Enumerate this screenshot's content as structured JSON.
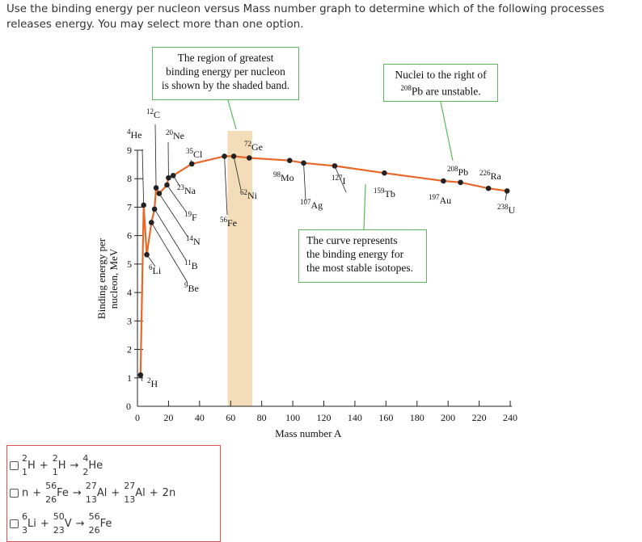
{
  "question": "Use the binding energy per nucleon versus Mass number graph to determine which of the following processes releases energy. You may select more than one option.",
  "callouts": {
    "shaded_band": [
      "The region of greatest",
      "binding energy per nucleon",
      "is shown by the shaded band."
    ],
    "unstable": [
      "Nuclei to the right of",
      "Pb are unstable."
    ],
    "unstable_mass": "208",
    "curve": [
      "The curve represents",
      "the binding energy for",
      "the most stable isotopes."
    ]
  },
  "colors": {
    "curve": "#e8682a",
    "band": "#f3ddb9",
    "callout_border": "#5cb85c",
    "options_border": "#d9534f"
  },
  "chart_data": {
    "type": "line",
    "xlabel": "Mass number A",
    "ylabel": [
      "Binding energy per",
      "nucleon, MeV"
    ],
    "xlim": [
      0,
      240
    ],
    "ylim": [
      0,
      9
    ],
    "xticks": [
      0,
      20,
      40,
      60,
      80,
      100,
      120,
      140,
      160,
      180,
      200,
      220,
      240
    ],
    "yticks": [
      1,
      2,
      3,
      4,
      5,
      6,
      7,
      8,
      9
    ],
    "shaded_band": [
      58,
      74
    ],
    "series": [
      {
        "points": [
          {
            "A": 2,
            "y": 1.1,
            "mass": "2",
            "sym": "H"
          },
          {
            "A": 4,
            "y": 7.07,
            "mass": "4",
            "sym": "He"
          },
          {
            "A": 6,
            "y": 5.33,
            "mass": "6",
            "sym": "Li"
          },
          {
            "A": 9,
            "y": 6.46,
            "mass": "9",
            "sym": "Be"
          },
          {
            "A": 11,
            "y": 6.93,
            "mass": "11",
            "sym": "B"
          },
          {
            "A": 12,
            "y": 7.68,
            "mass": "12",
            "sym": "C"
          },
          {
            "A": 14,
            "y": 7.48,
            "mass": "14",
            "sym": "N"
          },
          {
            "A": 19,
            "y": 7.78,
            "mass": "19",
            "sym": "F"
          },
          {
            "A": 20,
            "y": 8.03,
            "mass": "20",
            "sym": "Ne"
          },
          {
            "A": 23,
            "y": 8.11,
            "mass": "23",
            "sym": "Na"
          },
          {
            "A": 35,
            "y": 8.52,
            "mass": "35",
            "sym": "Cl"
          },
          {
            "A": 56,
            "y": 8.79,
            "mass": "56",
            "sym": "Fe"
          },
          {
            "A": 62,
            "y": 8.79,
            "mass": "62",
            "sym": "Ni"
          },
          {
            "A": 72,
            "y": 8.73,
            "mass": "72",
            "sym": "Ge"
          },
          {
            "A": 98,
            "y": 8.64,
            "mass": "98",
            "sym": "Mo"
          },
          {
            "A": 107,
            "y": 8.55,
            "mass": "107",
            "sym": "Ag"
          },
          {
            "A": 127,
            "y": 8.45,
            "mass": "127",
            "sym": "I"
          },
          {
            "A": 159,
            "y": 8.2,
            "mass": "159",
            "sym": "Tb"
          },
          {
            "A": 197,
            "y": 7.92,
            "mass": "197",
            "sym": "Au"
          },
          {
            "A": 208,
            "y": 7.87,
            "mass": "208",
            "sym": "Pb"
          },
          {
            "A": 226,
            "y": 7.66,
            "mass": "226",
            "sym": "Ra"
          },
          {
            "A": 238,
            "y": 7.57,
            "mass": "238",
            "sym": "U"
          }
        ]
      }
    ]
  },
  "options": [
    {
      "parts": [
        {
          "kind": "nuc",
          "sup": "2",
          "sub": "1",
          "sym": "H"
        },
        {
          "kind": "op",
          "text": "+"
        },
        {
          "kind": "nuc",
          "sup": "2",
          "sub": "1",
          "sym": "H"
        },
        {
          "kind": "op",
          "text": "→"
        },
        {
          "kind": "nuc",
          "sup": "4",
          "sub": "2",
          "sym": "He"
        }
      ]
    },
    {
      "parts": [
        {
          "kind": "nuc",
          "sup": "",
          "sub": "",
          "sym": "n"
        },
        {
          "kind": "op",
          "text": "+"
        },
        {
          "kind": "nuc",
          "sup": "56",
          "sub": "26",
          "sym": "Fe"
        },
        {
          "kind": "op",
          "text": "→"
        },
        {
          "kind": "nuc",
          "sup": "27",
          "sub": "13",
          "sym": "Al"
        },
        {
          "kind": "op",
          "text": "+"
        },
        {
          "kind": "nuc",
          "sup": "27",
          "sub": "13",
          "sym": "Al"
        },
        {
          "kind": "op",
          "text": "+"
        },
        {
          "kind": "nuc",
          "sup": "",
          "sub": "",
          "sym": "2n"
        }
      ]
    },
    {
      "parts": [
        {
          "kind": "nuc",
          "sup": "6",
          "sub": "3",
          "sym": "Li"
        },
        {
          "kind": "op",
          "text": "+"
        },
        {
          "kind": "nuc",
          "sup": "50",
          "sub": "23",
          "sym": "V"
        },
        {
          "kind": "op",
          "text": "→"
        },
        {
          "kind": "nuc",
          "sup": "56",
          "sub": "26",
          "sym": "Fe"
        }
      ]
    }
  ]
}
